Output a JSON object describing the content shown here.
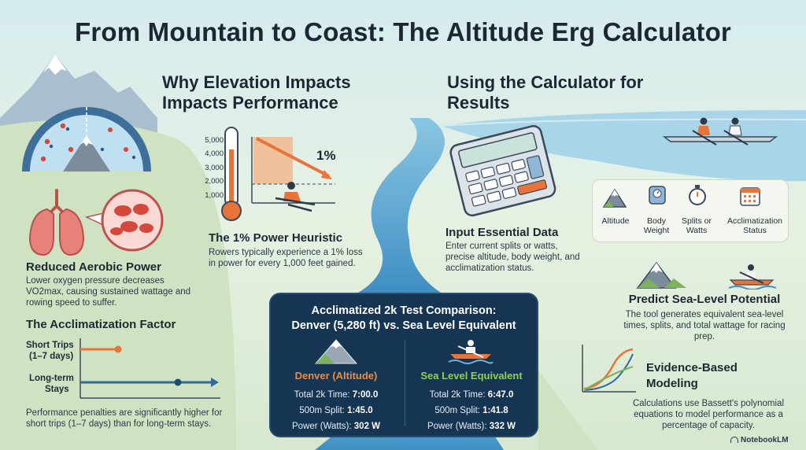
{
  "title": "From Mountain to Coast: The Altitude Erg Calculator",
  "left": {
    "why_heading": "Why Elevation Impacts Impacts Performance",
    "reduced_aerobic": {
      "title": "Reduced Aerobic Power",
      "body": "Lower oxygen pressure decreases VO2max, causing sustained wattage and rowing speed to suffer."
    },
    "power_heuristic": {
      "title": "The 1% Power Heuristic",
      "body": "Rowers typically experience a 1% loss in power for every 1,000 feet gained.",
      "chart_ticks": [
        "5,000",
        "4,000",
        "3,000",
        "2,000",
        "1,000"
      ],
      "annotation": "1%"
    },
    "acclimatization": {
      "title": "The Acclimatization Factor",
      "short_label_1": "Short Trips",
      "short_label_2": "(1–7 days)",
      "long_label_1": "Long-term",
      "long_label_2": "Stays",
      "body": "Performance penalties are significantly higher for short trips (1–7 days) than for long-term stays."
    }
  },
  "right": {
    "using_heading": "Using the Calculator for Results",
    "input": {
      "title": "Input Essential Data",
      "body": "Enter current splits or watts, precise altitude, body weight, and acclimatization status."
    },
    "inputs_icons": [
      {
        "icon": "mountain-icon",
        "label": "Altitude"
      },
      {
        "icon": "scale-icon",
        "label": "Body Weight"
      },
      {
        "icon": "stopwatch-icon",
        "label": "Splits or Watts"
      },
      {
        "icon": "calendar-icon",
        "label": "Acclimatization Status"
      }
    ],
    "predict": {
      "title": "Predict Sea-Level Potential",
      "body": "The tool generates equivalent sea-level times, splits, and total wattage for racing prep."
    },
    "evidence": {
      "title": "Evidence-Based Modeling",
      "body": "Calculations use Bassett's polynomial equations to model performance as a percentage of capacity."
    }
  },
  "comparison": {
    "title_1": "Acclimatized 2k Test Comparison:",
    "title_2": "Denver (5,280 ft) vs. Sea Level Equivalent",
    "denver": {
      "heading": "Denver (Altitude)",
      "total_label": "Total 2k Time:",
      "total": "7:00.0",
      "split_label": "500m Split:",
      "split": "1:45.0",
      "power_label": "Power (Watts):",
      "power": "302 W"
    },
    "sea": {
      "heading": "Sea Level Equivalent",
      "total_label": "Total 2k Time:",
      "total": "6:47.0",
      "split_label": "500m Split:",
      "split": "1:41.8",
      "power_label": "Power (Watts):",
      "power": "332 W"
    }
  },
  "footer": {
    "brand": "NotebookLM"
  },
  "colors": {
    "accent_orange": "#e8743a",
    "navy": "#163552",
    "river": "#6fb3d8",
    "denver": "#f08a3c",
    "sea": "#8fd14f"
  }
}
